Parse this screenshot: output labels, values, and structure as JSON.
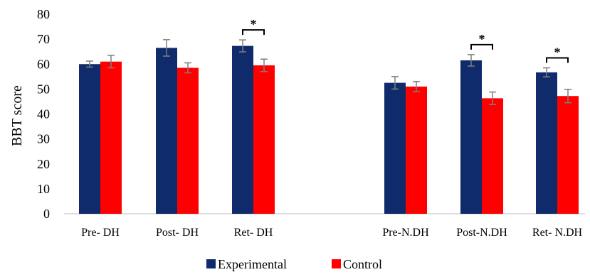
{
  "chart_data": {
    "type": "bar",
    "title": "",
    "xlabel": "",
    "ylabel": "BBT score",
    "ylim": [
      0,
      80
    ],
    "yticks": [
      "0",
      "10",
      "20",
      "30",
      "40",
      "50",
      "60",
      "70",
      "80"
    ],
    "grid": false,
    "legend_position": "bottom-center",
    "categories": [
      "Pre- DH",
      "Post- DH",
      "Ret- DH",
      "",
      "Pre-N.DH",
      "Post-N.DH",
      "Ret- N.DH"
    ],
    "series": [
      {
        "name": "Experimental",
        "color": "#0f2b6b",
        "values": [
          60.0,
          66.5,
          67.3,
          null,
          52.5,
          61.5,
          56.7
        ],
        "errors": [
          1.2,
          3.3,
          2.4,
          null,
          2.5,
          2.3,
          1.8
        ]
      },
      {
        "name": "Control",
        "color": "#ff0000",
        "values": [
          61.0,
          58.5,
          59.5,
          null,
          51.0,
          46.3,
          47.2
        ],
        "errors": [
          2.5,
          2.0,
          2.5,
          null,
          2.0,
          2.5,
          2.7
        ]
      }
    ],
    "significance": [
      {
        "category": "Ret- DH",
        "label": "*"
      },
      {
        "category": "Post-N.DH",
        "label": "*"
      },
      {
        "category": "Ret- N.DH",
        "label": "*"
      }
    ]
  }
}
